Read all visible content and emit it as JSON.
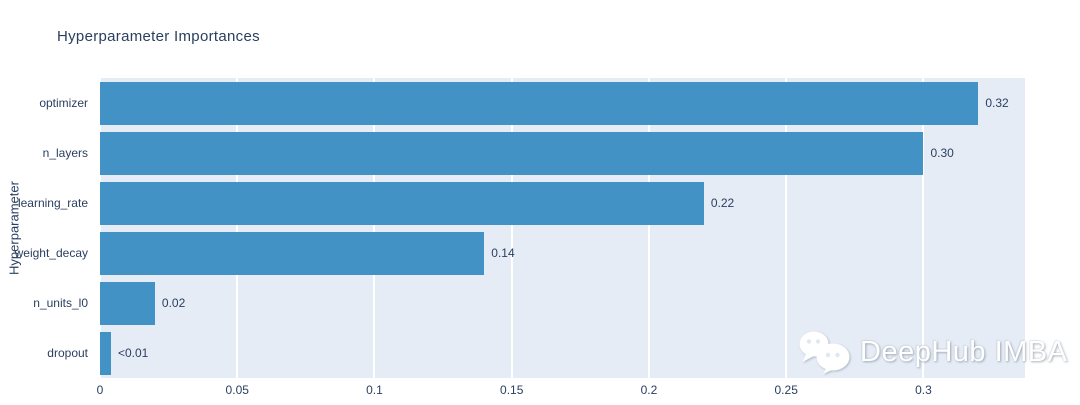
{
  "colors": {
    "bar": "#4292c6",
    "plot_background": "#e5ecf6",
    "gridline": "#ffffff",
    "text": "#2a3f5f",
    "page_background": "#ffffff",
    "watermark_text": "#ffffff"
  },
  "chart_data": {
    "type": "bar",
    "orientation": "horizontal",
    "title": "Hyperparameter Importances",
    "xlabel": "",
    "ylabel": "Hyperparameter",
    "categories": [
      "optimizer",
      "n_layers",
      "learning_rate",
      "weight_decay",
      "n_units_l0",
      "dropout"
    ],
    "values": [
      0.32,
      0.3,
      0.22,
      0.14,
      0.02,
      0.004
    ],
    "value_labels": [
      "0.32",
      "0.30",
      "0.22",
      "0.14",
      "0.02",
      "<0.01"
    ],
    "xlim": [
      0,
      0.337
    ],
    "xticks": [
      0,
      0.05,
      0.1,
      0.15,
      0.2,
      0.25,
      0.3
    ],
    "xtick_labels": [
      "0",
      "0.05",
      "0.1",
      "0.15",
      "0.2",
      "0.25",
      "0.3"
    ],
    "grid": true,
    "legend": "none"
  },
  "watermark": {
    "icon": "wechat-icon",
    "text": "DeepHub IMBA"
  }
}
